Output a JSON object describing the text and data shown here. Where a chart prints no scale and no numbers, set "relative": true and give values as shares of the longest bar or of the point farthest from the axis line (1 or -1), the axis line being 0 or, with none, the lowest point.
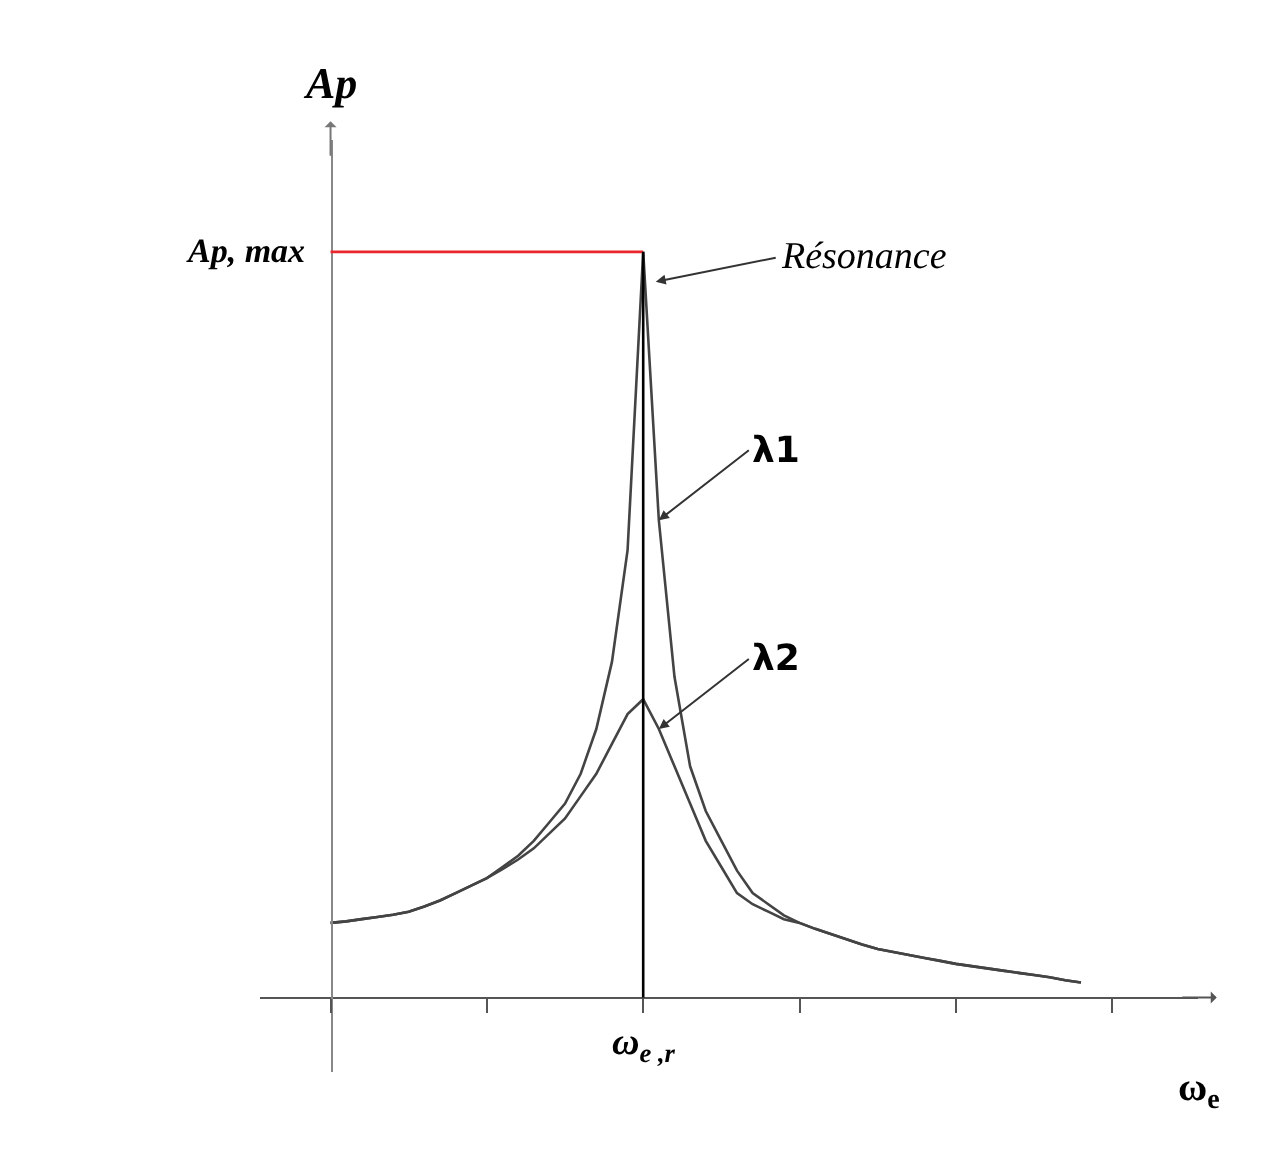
{
  "chart_data": {
    "type": "line",
    "relative": true,
    "xlabel": "ω$_{e}$",
    "ylabel": "Ap",
    "categories": [
      null,
      null,
      null,
      null,
      null,
      null,
      null,
      null,
      null,
      null,
      null,
      null,
      null,
      null,
      null,
      null,
      null,
      null,
      null,
      null,
      null,
      null,
      null,
      null,
      null,
      null,
      null,
      null,
      null,
      null,
      null,
      null,
      null,
      null,
      null,
      null,
      null,
      null,
      null,
      null,
      null,
      null,
      null,
      null,
      null,
      null,
      null,
      null,
      null
    ],
    "series": [
      {
        "name": "λ1",
        "color": "#444444",
        "values": [
          0.1,
          0.102,
          0.105,
          0.108,
          0.111,
          0.115,
          0.122,
          0.13,
          0.14,
          0.15,
          0.16,
          0.175,
          0.19,
          0.21,
          0.235,
          0.26,
          0.3,
          0.36,
          0.45,
          0.6,
          1.0,
          0.64,
          0.43,
          0.31,
          0.25,
          0.21,
          0.17,
          0.14,
          0.125,
          0.11,
          0.1,
          0.092,
          0.085,
          0.078,
          0.071,
          0.065,
          0.061,
          0.057,
          0.053,
          0.049,
          0.045,
          0.042,
          0.039,
          0.036,
          0.033,
          0.03,
          0.027,
          0.023,
          0.02
        ]
      },
      {
        "name": "λ2",
        "color": "#444444",
        "values": [
          0.1,
          0.102,
          0.105,
          0.108,
          0.111,
          0.115,
          0.122,
          0.13,
          0.14,
          0.15,
          0.16,
          0.172,
          0.185,
          0.2,
          0.22,
          0.24,
          0.27,
          0.3,
          0.34,
          0.38,
          0.4,
          0.36,
          0.31,
          0.26,
          0.21,
          0.175,
          0.14,
          0.125,
          0.115,
          0.105,
          0.1,
          0.092,
          0.085,
          0.078,
          0.071,
          0.065,
          0.061,
          0.057,
          0.053,
          0.049,
          0.045,
          0.042,
          0.039,
          0.036,
          0.033,
          0.03,
          0.027,
          0.023,
          0.02
        ]
      }
    ],
    "ref_lines": [
      {
        "axis": "y",
        "value": 1,
        "label": "Ap, max",
        "color": "#e8262b"
      },
      {
        "axis": "x",
        "label": "ω$_{e ,r}$",
        "color": "#000000"
      }
    ],
    "annotations": [
      "Résonance"
    ],
    "marker": "none",
    "line_style": "solid",
    "grid": false,
    "legend": false
  }
}
